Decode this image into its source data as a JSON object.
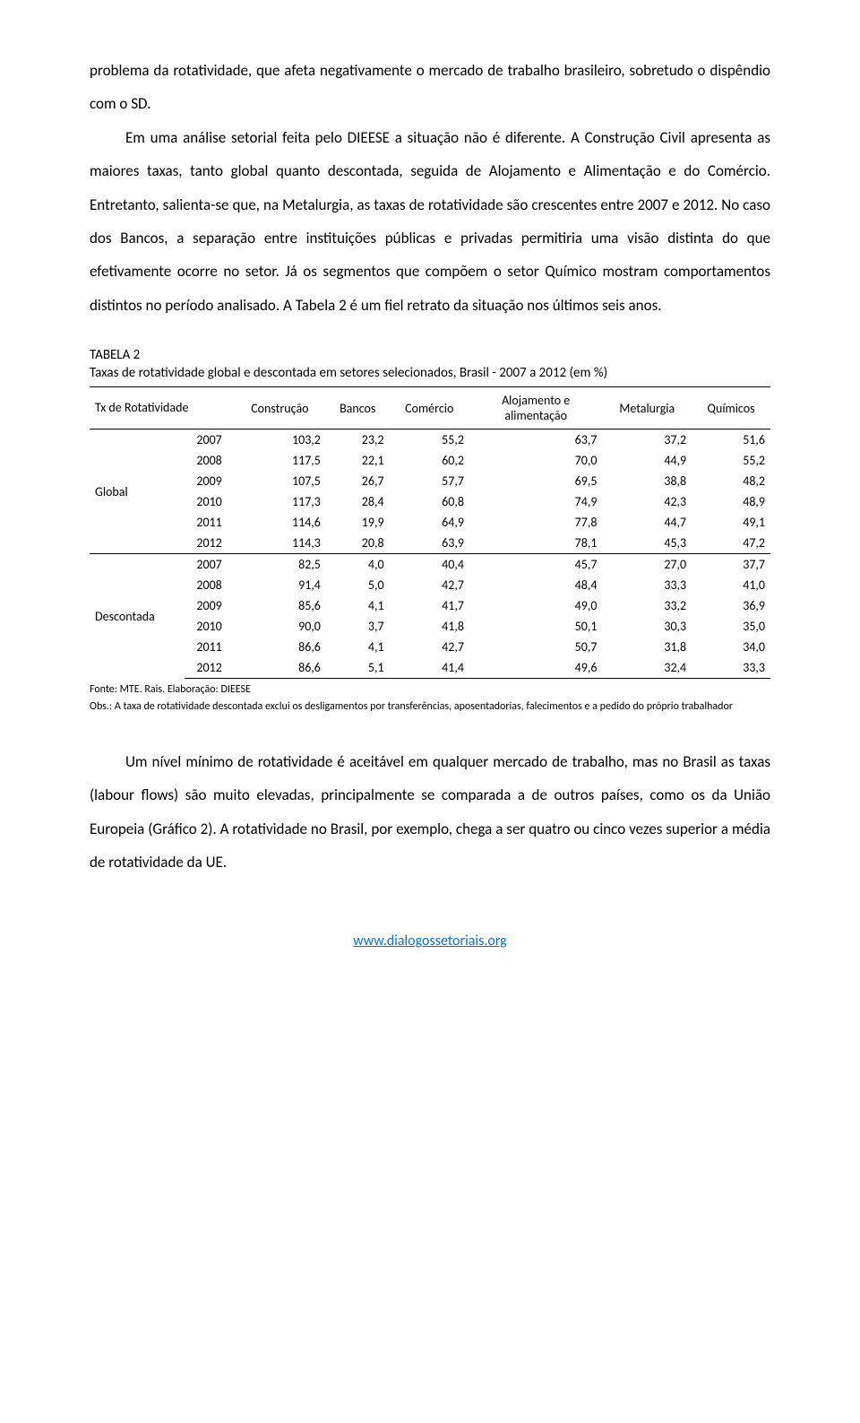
{
  "para1": "problema da rotatividade, que afeta negativamente o mercado de trabalho brasileiro, sobretudo o dispêndio com o SD.",
  "para2": "Em uma análise setorial feita pelo DIEESE a situação não é diferente. A Construção Civil apresenta as maiores taxas, tanto global quanto descontada, seguida de Alojamento e Alimentação e do Comércio. Entretanto, salienta-se que, na Metalurgia, as taxas de rotatividade são crescentes entre 2007 e 2012. No caso dos Bancos, a separação entre instituições públicas e privadas permitiria uma visão distinta do que efetivamente ocorre no setor. Já os segmentos que compõem o setor Químico mostram comportamentos distintos no período analisado. A Tabela 2 é um fiel retrato da situação nos últimos seis anos.",
  "tabela": {
    "label": "TABELA 2",
    "title": "Taxas de rotatividade global e descontada em setores selecionados, Brasil - 2007 a 2012 (em %)",
    "headers": {
      "tx": "Tx de Rotatividade",
      "cols": [
        "Construção",
        "Bancos",
        "Comércio",
        "Alojamento e alimentação",
        "Metalurgia",
        "Químicos"
      ]
    },
    "groups": [
      {
        "name": "Global",
        "rows": [
          {
            "year": "2007",
            "vals": [
              "103,2",
              "23,2",
              "55,2",
              "63,7",
              "37,2",
              "51,6"
            ]
          },
          {
            "year": "2008",
            "vals": [
              "117,5",
              "22,1",
              "60,2",
              "70,0",
              "44,9",
              "55,2"
            ]
          },
          {
            "year": "2009",
            "vals": [
              "107,5",
              "26,7",
              "57,7",
              "69,5",
              "38,8",
              "48,2"
            ]
          },
          {
            "year": "2010",
            "vals": [
              "117,3",
              "28,4",
              "60,8",
              "74,9",
              "42,3",
              "48,9"
            ]
          },
          {
            "year": "2011",
            "vals": [
              "114,6",
              "19,9",
              "64,9",
              "77,8",
              "44,7",
              "49,1"
            ]
          },
          {
            "year": "2012",
            "vals": [
              "114,3",
              "20,8",
              "63,9",
              "78,1",
              "45,3",
              "47,2"
            ]
          }
        ]
      },
      {
        "name": "Descontada",
        "rows": [
          {
            "year": "2007",
            "vals": [
              "82,5",
              "4,0",
              "40,4",
              "45,7",
              "27,0",
              "37,7"
            ]
          },
          {
            "year": "2008",
            "vals": [
              "91,4",
              "5,0",
              "42,7",
              "48,4",
              "33,3",
              "41,0"
            ]
          },
          {
            "year": "2009",
            "vals": [
              "85,6",
              "4,1",
              "41,7",
              "49,0",
              "33,2",
              "36,9"
            ]
          },
          {
            "year": "2010",
            "vals": [
              "90,0",
              "3,7",
              "41,8",
              "50,1",
              "30,3",
              "35,0"
            ]
          },
          {
            "year": "2011",
            "vals": [
              "86,6",
              "4,1",
              "42,7",
              "50,7",
              "31,8",
              "34,0"
            ]
          },
          {
            "year": "2012",
            "vals": [
              "86,6",
              "5,1",
              "41,4",
              "49,6",
              "32,4",
              "33,3"
            ]
          }
        ]
      }
    ],
    "fonte": "Fonte: MTE. Rais. Elaboração: DIEESE",
    "obs": "Obs.: A taxa de rotatividade descontada exclui os desligamentos por transferências, aposentadorias, falecimentos e a pedido do próprio trabalhador"
  },
  "para3": "Um nível mínimo de rotatividade é aceitável em qualquer mercado de trabalho, mas no Brasil as taxas (labour flows) são muito elevadas, principalmente se comparada a de outros países, como os da União Europeia (Gráfico 2). A rotatividade no Brasil, por exemplo, chega a ser quatro ou cinco vezes superior a média de rotatividade da UE.",
  "footer_url": "www.dialogossetoriais.org"
}
